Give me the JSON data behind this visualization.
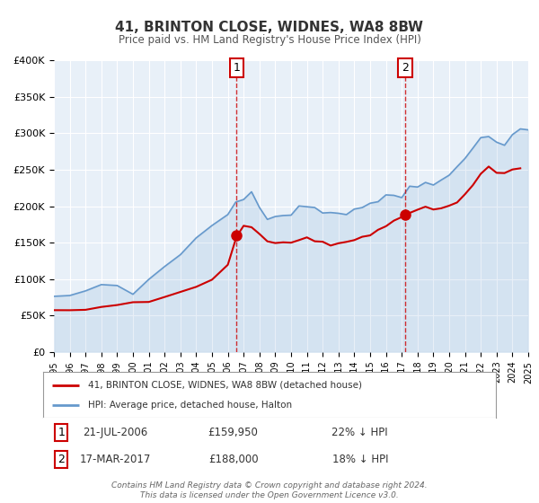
{
  "title": "41, BRINTON CLOSE, WIDNES, WA8 8BW",
  "subtitle": "Price paid vs. HM Land Registry's House Price Index (HPI)",
  "legend_line1": "41, BRINTON CLOSE, WIDNES, WA8 8BW (detached house)",
  "legend_line2": "HPI: Average price, detached house, Halton",
  "sale1_date": "21-JUL-2006",
  "sale1_price": "£159,950",
  "sale1_hpi": "22% ↓ HPI",
  "sale1_year": 2006.55,
  "sale1_value": 159950,
  "sale2_date": "17-MAR-2017",
  "sale2_price": "£188,000",
  "sale2_hpi": "18% ↓ HPI",
  "sale2_year": 2017.21,
  "sale2_value": 188000,
  "footer": "Contains HM Land Registry data © Crown copyright and database right 2024.\nThis data is licensed under the Open Government Licence v3.0.",
  "hpi_color": "#6699cc",
  "price_color": "#cc0000",
  "bg_color": "#e8f0f8",
  "plot_bg": "#f5f5f5",
  "ylim_min": 0,
  "ylim_max": 400000,
  "xlim_min": 1995,
  "xlim_max": 2025
}
